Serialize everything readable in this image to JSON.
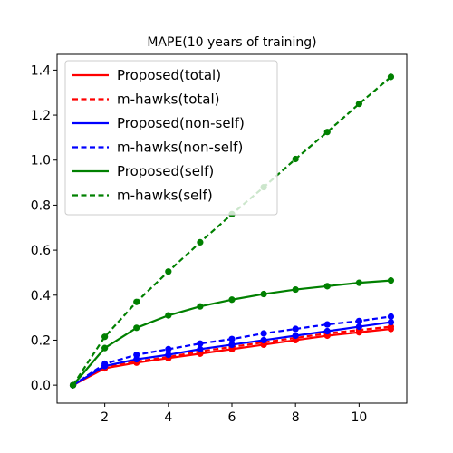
{
  "chart_data": {
    "type": "line",
    "title": "MAPE(10 years of training)",
    "xlabel": "",
    "ylabel": "",
    "xlim": [
      0.5,
      11.5
    ],
    "ylim": [
      -0.08,
      1.47
    ],
    "xticks": [
      2,
      4,
      6,
      8,
      10
    ],
    "yticks": [
      0.0,
      0.2,
      0.4,
      0.6,
      0.8,
      1.0,
      1.2,
      1.4
    ],
    "grid": false,
    "legend_position": "top-left",
    "x": [
      1,
      2,
      3,
      4,
      5,
      6,
      7,
      8,
      9,
      10,
      11
    ],
    "series": [
      {
        "name": "Proposed(total)",
        "color": "#ff0000",
        "style": "solid",
        "values": [
          0.0,
          0.075,
          0.1,
          0.12,
          0.14,
          0.16,
          0.18,
          0.2,
          0.22,
          0.235,
          0.25
        ]
      },
      {
        "name": "m-hawks(total)",
        "color": "#ff0000",
        "style": "dashed",
        "values": [
          0.0,
          0.08,
          0.105,
          0.125,
          0.15,
          0.17,
          0.19,
          0.21,
          0.23,
          0.245,
          0.26
        ]
      },
      {
        "name": "Proposed(non-self)",
        "color": "#0000ff",
        "style": "solid",
        "values": [
          0.0,
          0.085,
          0.115,
          0.135,
          0.16,
          0.18,
          0.2,
          0.22,
          0.24,
          0.26,
          0.28
        ]
      },
      {
        "name": "m-hawks(non-self)",
        "color": "#0000ff",
        "style": "dashed",
        "values": [
          0.0,
          0.095,
          0.135,
          0.16,
          0.185,
          0.205,
          0.23,
          0.25,
          0.27,
          0.285,
          0.305
        ]
      },
      {
        "name": "Proposed(self)",
        "color": "#008000",
        "style": "solid",
        "values": [
          0.0,
          0.165,
          0.255,
          0.31,
          0.35,
          0.38,
          0.405,
          0.425,
          0.44,
          0.455,
          0.465
        ]
      },
      {
        "name": "m-hawks(self)",
        "color": "#008000",
        "style": "dashed",
        "values": [
          0.0,
          0.215,
          0.37,
          0.505,
          0.635,
          0.76,
          0.88,
          1.005,
          1.125,
          1.25,
          1.37
        ]
      }
    ]
  }
}
